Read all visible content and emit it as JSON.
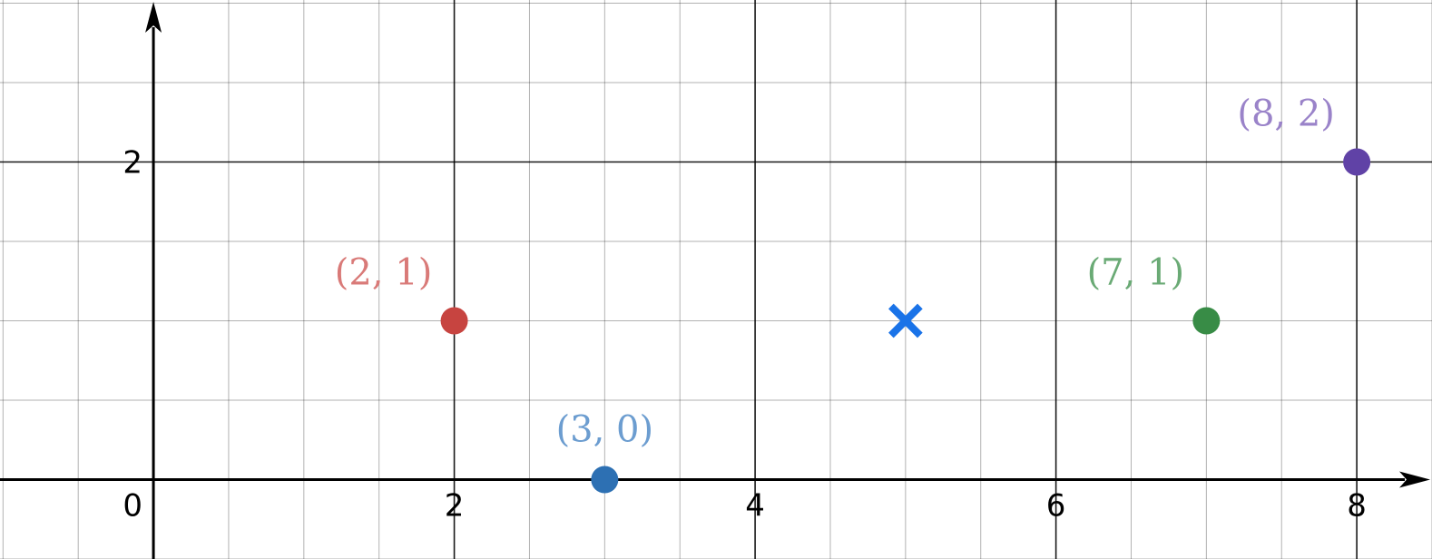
{
  "chart_data": {
    "type": "scatter",
    "xlim": [
      -1.02,
      8.5
    ],
    "ylim": [
      -0.5,
      3.02
    ],
    "grid": true,
    "minor_step": 0.5,
    "major_step": 2,
    "x_ticks": [
      {
        "value": 0,
        "label": "0"
      },
      {
        "value": 2,
        "label": "2"
      },
      {
        "value": 4,
        "label": "4"
      },
      {
        "value": 6,
        "label": "6"
      },
      {
        "value": 8,
        "label": "8"
      }
    ],
    "y_ticks": [
      {
        "value": 2,
        "label": "2"
      }
    ],
    "points": [
      {
        "x": 2,
        "y": 1,
        "label": "(2, 1)",
        "color": "#c74440",
        "label_color": "#d97a78"
      },
      {
        "x": 3,
        "y": 0,
        "label": "(3, 0)",
        "color": "#2d70b3",
        "label_color": "#6c9dd0"
      },
      {
        "x": 7,
        "y": 1,
        "label": "(7, 1)",
        "color": "#388c46",
        "label_color": "#6aaa75"
      },
      {
        "x": 8,
        "y": 2,
        "label": "(8, 2)",
        "color": "#6042a6",
        "label_color": "#9a83c9"
      }
    ],
    "markers": [
      {
        "x": 5,
        "y": 1,
        "shape": "cross",
        "color": "#1a73e8"
      }
    ]
  }
}
